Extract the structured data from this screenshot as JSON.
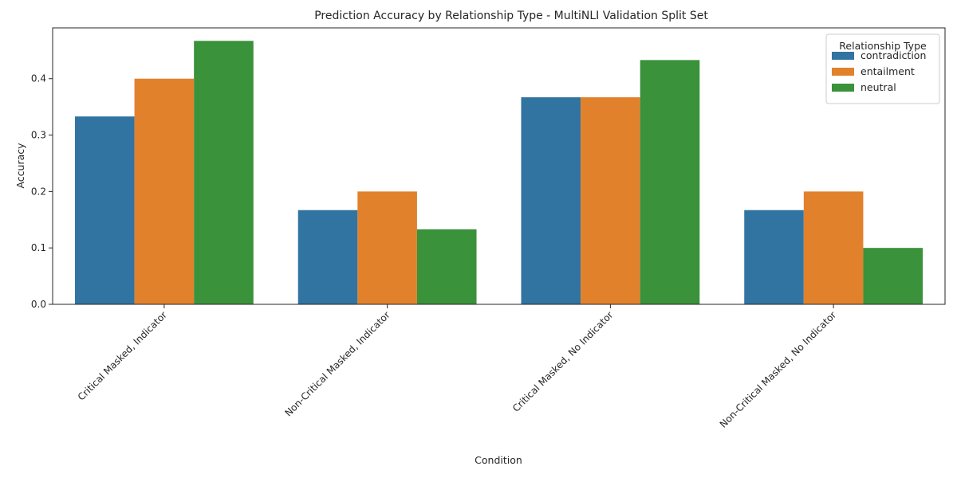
{
  "chart_data": {
    "type": "bar",
    "title": "Prediction Accuracy by Relationship Type - MultiNLI Validation Split Set",
    "xlabel": "Condition",
    "ylabel": "Accuracy",
    "ylim": [
      0,
      0.49
    ],
    "yticks": [
      "0.0",
      "0.1",
      "0.2",
      "0.3",
      "0.4"
    ],
    "categories": [
      "Critical Masked, Indicator",
      "Non-Critical Masked, Indicator",
      "Critical Masked, No Indicator",
      "Non-Critical Masked, No Indicator"
    ],
    "series": [
      {
        "name": "contradiction",
        "color": "#3274a1",
        "values": [
          0.333,
          0.167,
          0.367,
          0.167
        ]
      },
      {
        "name": "entailment",
        "color": "#e1812c",
        "values": [
          0.4,
          0.2,
          0.367,
          0.2
        ]
      },
      {
        "name": "neutral",
        "color": "#3a923a",
        "values": [
          0.467,
          0.133,
          0.433,
          0.1
        ]
      }
    ],
    "legend": {
      "title": "Relationship Type",
      "placement": "top-right"
    },
    "grid": false
  }
}
